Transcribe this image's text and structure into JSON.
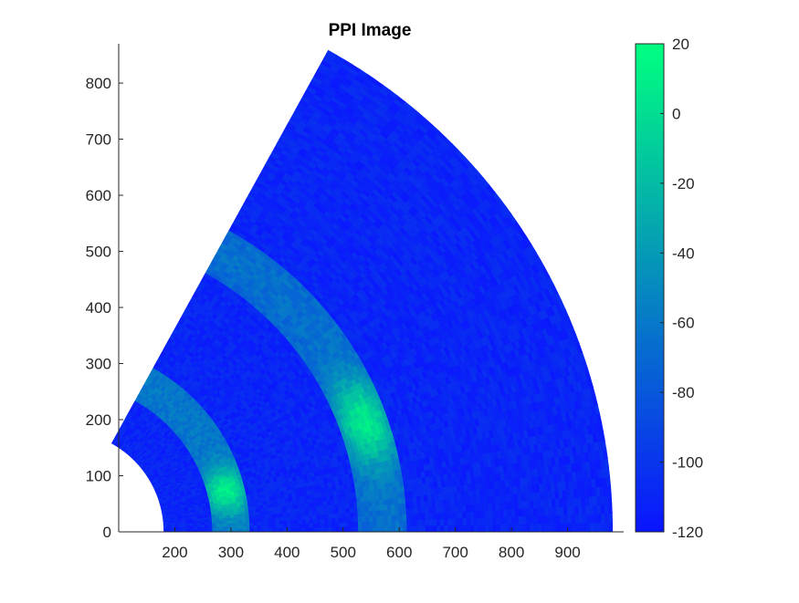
{
  "chart_data": {
    "type": "heatmap",
    "title": "PPI Image",
    "xlabel": "",
    "ylabel": "",
    "xlim": [
      100,
      1000
    ],
    "ylim": [
      0,
      870
    ],
    "x_ticks": [
      200,
      300,
      400,
      500,
      600,
      700,
      800,
      900
    ],
    "y_ticks": [
      0,
      100,
      200,
      300,
      400,
      500,
      600,
      700,
      800
    ],
    "grid": false,
    "geometry": "polar sector",
    "range_min": 180,
    "range_max": 980,
    "azimuth_deg": [
      0,
      61
    ],
    "background_level": -110,
    "bands": [
      {
        "r_min": 265,
        "r_max": 335,
        "peak_level": 12,
        "edge_level": -60,
        "peak_azimuth_deg": 14
      },
      {
        "r_min": 530,
        "r_max": 615,
        "peak_level": 8,
        "edge_level": -65,
        "peak_azimuth_deg": 20
      }
    ],
    "colorbar": {
      "min": -120,
      "max": 20,
      "ticks": [
        20,
        0,
        -20,
        -40,
        -60,
        -80,
        -100,
        -120
      ],
      "color_low": "#0a14ff",
      "color_high": "#00ff80"
    }
  }
}
